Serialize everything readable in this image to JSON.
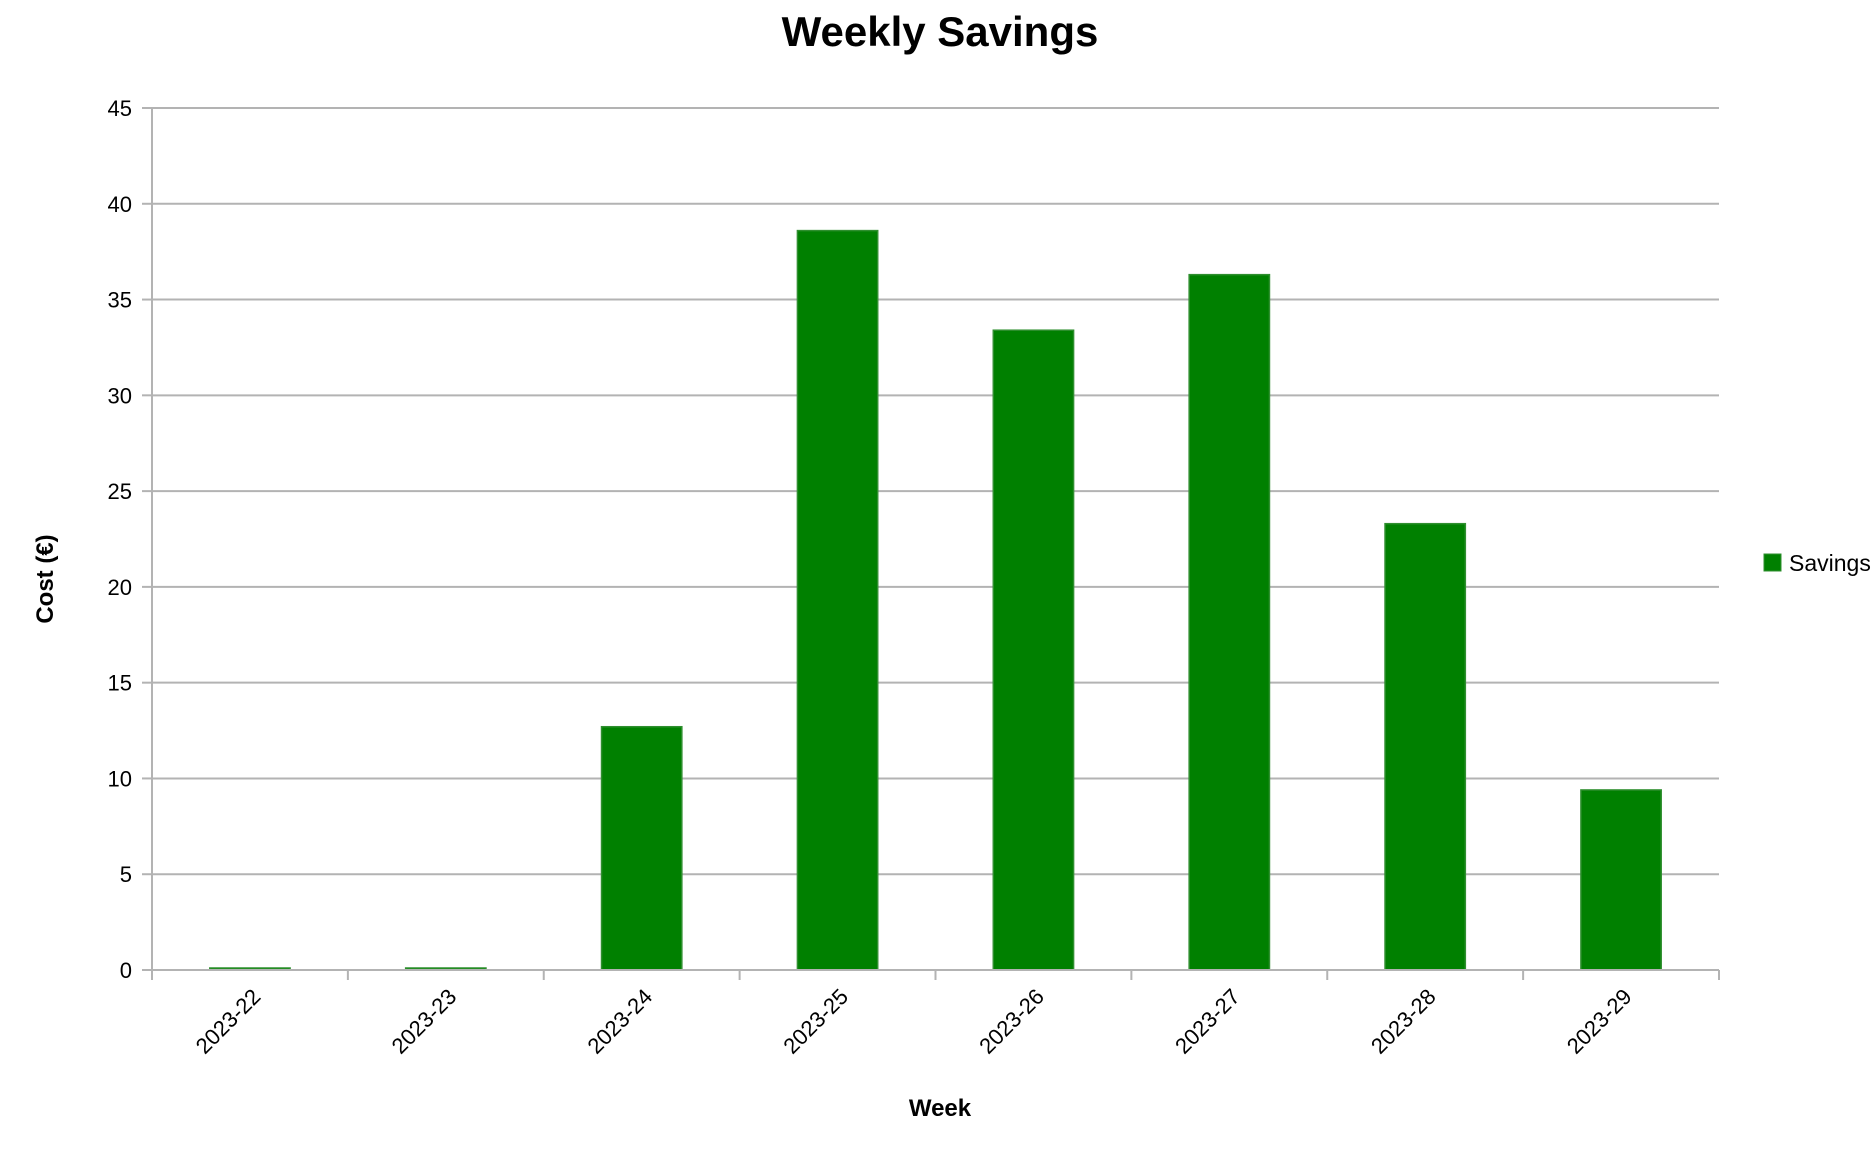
{
  "chart_data": {
    "type": "bar",
    "title": "Weekly Savings",
    "xlabel": "Week",
    "ylabel": "Cost (€)",
    "categories": [
      "2023-22",
      "2023-23",
      "2023-24",
      "2023-25",
      "2023-26",
      "2023-27",
      "2023-28",
      "2023-29"
    ],
    "series": [
      {
        "name": "Savings",
        "color": "#008000",
        "values": [
          0,
          0,
          12.7,
          38.6,
          33.4,
          36.3,
          23.3,
          9.4
        ]
      }
    ],
    "ylim": [
      0,
      45
    ],
    "yticks": [
      0,
      5,
      10,
      15,
      20,
      25,
      30,
      35,
      40,
      45
    ],
    "grid": true,
    "legend_position": "right"
  }
}
